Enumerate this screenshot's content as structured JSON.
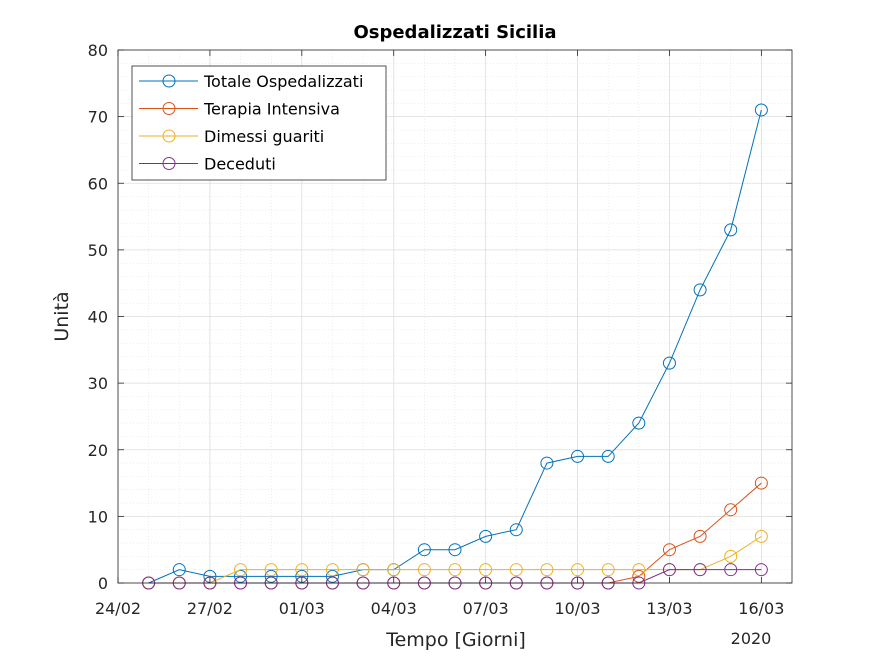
{
  "chart_data": {
    "type": "line",
    "title": "Ospedalizzati Sicilia",
    "xlabel": "Tempo [Giorni]",
    "ylabel": "Unità",
    "year_label": "2020",
    "x": [
      "2020-02-25",
      "2020-02-26",
      "2020-02-27",
      "2020-02-28",
      "2020-02-29",
      "2020-03-01",
      "2020-03-02",
      "2020-03-03",
      "2020-03-04",
      "2020-03-05",
      "2020-03-06",
      "2020-03-07",
      "2020-03-08",
      "2020-03-09",
      "2020-03-10",
      "2020-03-11",
      "2020-03-12",
      "2020-03-13",
      "2020-03-14",
      "2020-03-15",
      "2020-03-16"
    ],
    "xlim": [
      "2020-02-24",
      "2020-03-17"
    ],
    "xticks": [
      {
        "date": "2020-02-24",
        "label": "24/02"
      },
      {
        "date": "2020-02-27",
        "label": "27/02"
      },
      {
        "date": "2020-03-01",
        "label": "01/03"
      },
      {
        "date": "2020-03-04",
        "label": "04/03"
      },
      {
        "date": "2020-03-07",
        "label": "07/03"
      },
      {
        "date": "2020-03-10",
        "label": "10/03"
      },
      {
        "date": "2020-03-13",
        "label": "13/03"
      },
      {
        "date": "2020-03-16",
        "label": "16/03"
      }
    ],
    "ylim": [
      0,
      80
    ],
    "yticks": [
      0,
      10,
      20,
      30,
      40,
      50,
      60,
      70,
      80
    ],
    "grid": true,
    "minor_grid": true,
    "legend_position": "top-left",
    "series": [
      {
        "name": "Totale Ospedalizzati",
        "color": "#0072BD",
        "values": [
          0,
          2,
          1,
          1,
          1,
          1,
          1,
          2,
          2,
          5,
          5,
          7,
          8,
          18,
          19,
          19,
          24,
          33,
          44,
          53,
          71
        ]
      },
      {
        "name": "Terapia Intensiva",
        "color": "#D95319",
        "values": [
          0,
          0,
          0,
          0,
          0,
          0,
          0,
          0,
          0,
          0,
          0,
          0,
          0,
          0,
          0,
          0,
          1,
          5,
          7,
          11,
          15
        ]
      },
      {
        "name": "Dimessi guariti",
        "color": "#EDB120",
        "values": [
          0,
          0,
          0,
          2,
          2,
          2,
          2,
          2,
          2,
          2,
          2,
          2,
          2,
          2,
          2,
          2,
          2,
          2,
          2,
          4,
          7
        ]
      },
      {
        "name": "Deceduti",
        "color": "#7E2F8E",
        "values": [
          0,
          0,
          0,
          0,
          0,
          0,
          0,
          0,
          0,
          0,
          0,
          0,
          0,
          0,
          0,
          0,
          0,
          2,
          2,
          2,
          2
        ]
      }
    ]
  }
}
